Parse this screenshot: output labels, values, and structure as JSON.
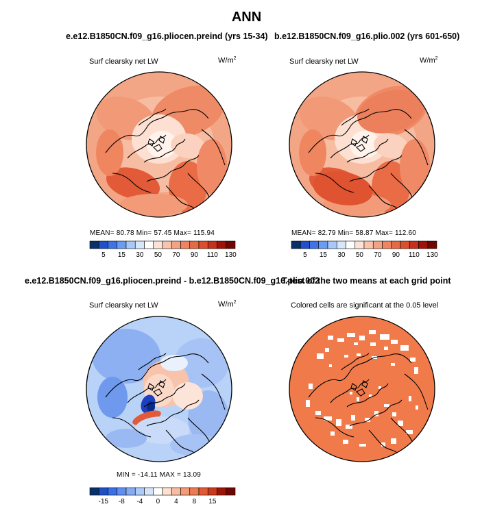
{
  "figure": {
    "title": "ANN",
    "colors": {
      "ocean_land_outline": "#000000",
      "significant_fill": "#f07a4a"
    }
  },
  "panels": [
    {
      "id": "top-left",
      "title": "e.e12.B1850CN.f09_g16.pliocen.preind (yrs 15-34)",
      "variable": "Surf clearsky net LW",
      "units_base": "W/m",
      "units_exp": "2",
      "stats_text": "MEAN=   80.78   Min=   57.45   Max= 115.94",
      "stats": {
        "mean": 80.78,
        "min": 57.45,
        "max": 115.94
      },
      "colorbar": {
        "ticks": [
          "5",
          "15",
          "30",
          "50",
          "70",
          "90",
          "110",
          "130"
        ],
        "colors": [
          "#08306b",
          "#2150c8",
          "#3f74e8",
          "#6b9cf3",
          "#a8c8f7",
          "#d6e6fb",
          "#ffffff",
          "#fde3d6",
          "#f9c4ab",
          "#f5a283",
          "#ef8460",
          "#e86a45",
          "#de4e2b",
          "#c9301a",
          "#9e1208",
          "#6e0602"
        ]
      }
    },
    {
      "id": "top-right",
      "title": "b.e12.B1850CN.f09_g16.plio.002 (yrs 601-650)",
      "variable": "Surf clearsky net LW",
      "units_base": "W/m",
      "units_exp": "2",
      "stats_text": "MEAN=   82.79   Min=   58.87   Max= 112.60",
      "stats": {
        "mean": 82.79,
        "min": 58.87,
        "max": 112.6
      },
      "colorbar": {
        "ticks": [
          "5",
          "15",
          "30",
          "50",
          "70",
          "90",
          "110",
          "130"
        ]
      }
    },
    {
      "id": "bottom-left",
      "title": "e.e12.B1850CN.f09_g16.pliocen.preind - b.e12.B1850CN.f09_g16.plio.002",
      "variable": "Surf clearsky net LW",
      "units_base": "W/m",
      "units_exp": "2",
      "stats_text": "MIN = -14.11   MAX =  13.09",
      "stats": {
        "min": -14.11,
        "max": 13.09
      },
      "colorbar": {
        "ticks": [
          "-15",
          "-8",
          "-4",
          "0",
          "4",
          "8",
          "15"
        ],
        "colors": [
          "#08306b",
          "#1f4fc4",
          "#3a6fe6",
          "#5f8ff0",
          "#86abf3",
          "#aecaf7",
          "#d5e4fb",
          "#ffffff",
          "#fde0d1",
          "#f8bda0",
          "#f39a76",
          "#ec7b52",
          "#e05a34",
          "#c93a1d",
          "#9e1508",
          "#6e0602"
        ]
      }
    },
    {
      "id": "bottom-right",
      "title": "T-test of the two means at each grid point",
      "subtitle": "Colored cells are significant at the 0.05 level"
    }
  ]
}
